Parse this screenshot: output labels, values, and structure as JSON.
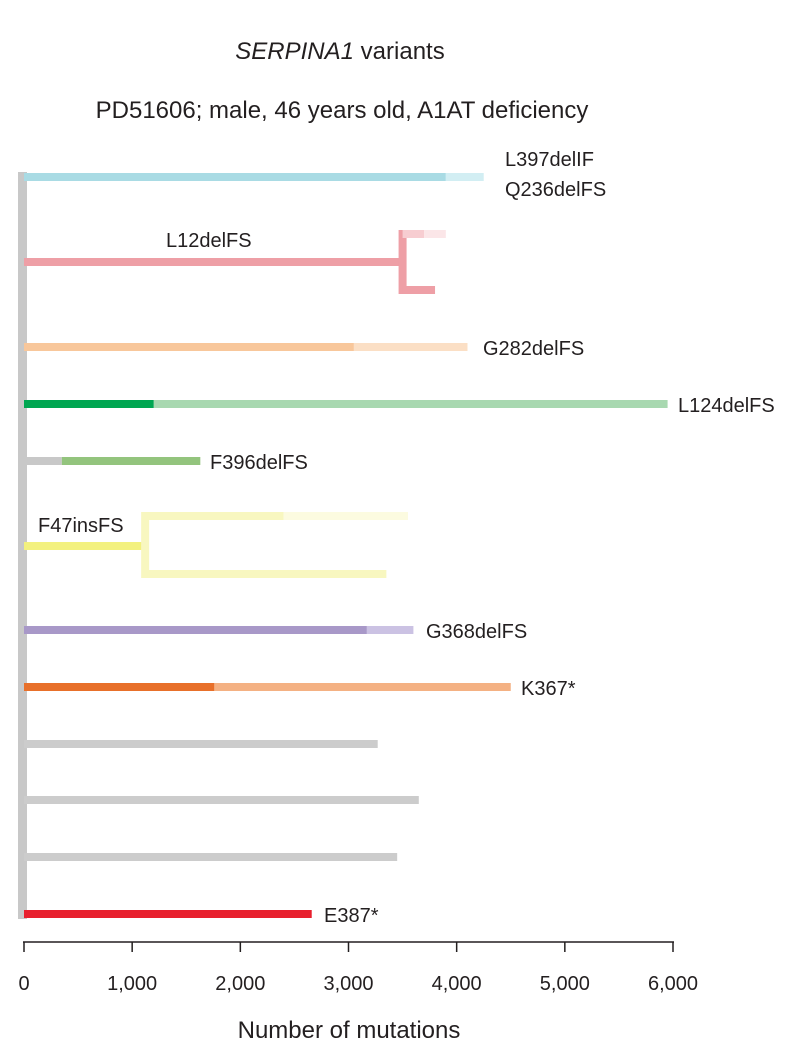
{
  "title_gene": "SERPINA1",
  "title_suffix": " variants",
  "subtitle": "PD51606; male, 46 years old, A1AT deficiency",
  "chart_data": {
    "type": "bar",
    "orientation": "horizontal",
    "description_of_marks": "phylogeny-style clone lineages: each lineage shows mutations on the trunk (dark) and on the branch (light); some lineages split into sub-branches",
    "xlabel": "Number of mutations",
    "xlim": [
      0,
      6000
    ],
    "xticks": [
      0,
      1000,
      2000,
      3000,
      4000,
      5000,
      6000
    ],
    "xtick_labels": [
      "0",
      "1,000",
      "2,000",
      "3,000",
      "4,000",
      "5,000",
      "6,000"
    ],
    "lineages": [
      {
        "label": "L397delIF\nQ236delFS",
        "dark_color": "#a9dbe4",
        "light_color": "#d2eef3",
        "segments": [
          {
            "start": 0,
            "end": 3900,
            "shade": "dark"
          },
          {
            "start": 3900,
            "end": 4250,
            "shade": "light"
          }
        ]
      },
      {
        "label": "L12delFS",
        "dark_color": "#ee9fa6",
        "light_color": "#f7cdd1",
        "segments": [
          {
            "start": 0,
            "end": 3500,
            "shade": "dark"
          }
        ],
        "split_at": 3500,
        "branches": [
          {
            "segments": [
              {
                "start": 3500,
                "end": 3700,
                "shade": "light"
              },
              {
                "start": 3700,
                "end": 3900,
                "shade": "lighter"
              }
            ]
          },
          {
            "segments": [
              {
                "start": 3500,
                "end": 3800,
                "shade": "dark"
              }
            ]
          }
        ]
      },
      {
        "label": "G282delFS",
        "dark_color": "#f8c79b",
        "light_color": "#fbdfc5",
        "segments": [
          {
            "start": 0,
            "end": 3050,
            "shade": "dark"
          },
          {
            "start": 3050,
            "end": 4100,
            "shade": "light"
          }
        ]
      },
      {
        "label": "L124delFS",
        "dark_color": "#00a651",
        "light_color": "#a8d8b0",
        "segments": [
          {
            "start": 0,
            "end": 1200,
            "shade": "dark"
          },
          {
            "start": 1200,
            "end": 5950,
            "shade": "light"
          }
        ]
      },
      {
        "label": "F396delFS",
        "dark_color": "#c8c8c8",
        "light_color": "#93c47d",
        "segments": [
          {
            "start": 0,
            "end": 350,
            "shade": "dark"
          },
          {
            "start": 350,
            "end": 1630,
            "shade": "light"
          }
        ]
      },
      {
        "label": "F47insFS",
        "dark_color": "#f3f17f",
        "light_color": "#f8f7c0",
        "segments": [
          {
            "start": 0,
            "end": 1120,
            "shade": "dark"
          }
        ],
        "split_at": 1120,
        "branches": [
          {
            "segments": [
              {
                "start": 1120,
                "end": 2400,
                "shade": "light"
              },
              {
                "start": 2400,
                "end": 3550,
                "shade": "lighter"
              }
            ]
          },
          {
            "segments": [
              {
                "start": 1120,
                "end": 3350,
                "shade": "light"
              }
            ]
          }
        ]
      },
      {
        "label": "G368delFS",
        "dark_color": "#a898c8",
        "light_color": "#cbc2e3",
        "segments": [
          {
            "start": 0,
            "end": 3170,
            "shade": "dark"
          },
          {
            "start": 3170,
            "end": 3600,
            "shade": "light"
          }
        ]
      },
      {
        "label": "K367*",
        "dark_color": "#e8702a",
        "light_color": "#f4b183",
        "segments": [
          {
            "start": 0,
            "end": 1760,
            "shade": "dark"
          },
          {
            "start": 1760,
            "end": 4500,
            "shade": "light"
          }
        ]
      },
      {
        "label": "",
        "dark_color": "#cccccc",
        "light_color": "#cccccc",
        "segments": [
          {
            "start": 0,
            "end": 3270,
            "shade": "dark"
          }
        ]
      },
      {
        "label": "",
        "dark_color": "#cccccc",
        "light_color": "#cccccc",
        "segments": [
          {
            "start": 0,
            "end": 3650,
            "shade": "dark"
          }
        ]
      },
      {
        "label": "",
        "dark_color": "#cccccc",
        "light_color": "#cccccc",
        "segments": [
          {
            "start": 0,
            "end": 3450,
            "shade": "dark"
          }
        ]
      },
      {
        "label": "E387*",
        "dark_color": "#e8202e",
        "light_color": "#e8202e",
        "segments": [
          {
            "start": 0,
            "end": 2660,
            "shade": "dark"
          }
        ]
      }
    ],
    "trunk_color": "#c8c8c8",
    "grid": false,
    "legend": "none"
  }
}
